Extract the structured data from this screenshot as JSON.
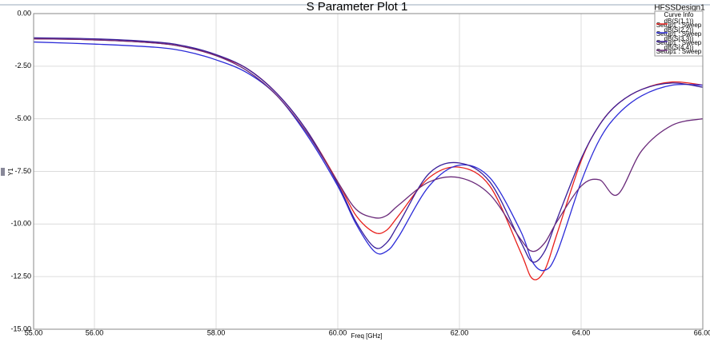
{
  "chart_data": {
    "type": "line",
    "title": "S Parameter Plot 1",
    "design": "HFSSDesign1",
    "legend_title": "Curve Info",
    "xlabel": "Freq [GHz]",
    "ylabel": "Y1",
    "x": [
      55,
      56,
      57,
      57.5,
      58,
      58.5,
      59,
      59.5,
      60,
      60.3,
      60.6,
      60.8,
      61,
      61.5,
      62,
      62.5,
      63,
      63.2,
      63.4,
      63.6,
      64,
      64.3,
      64.6,
      65,
      65.5,
      66
    ],
    "series": [
      {
        "name": "dB(S(1,1))",
        "setup": "Setup1 : Sweep",
        "color": "#e8201c",
        "values": [
          -1.2,
          -1.25,
          -1.4,
          -1.6,
          -2.0,
          -2.6,
          -3.8,
          -5.6,
          -8.0,
          -9.6,
          -10.4,
          -10.3,
          -9.6,
          -7.8,
          -7.3,
          -8.2,
          -11.3,
          -12.6,
          -12.2,
          -10.5,
          -7.0,
          -5.3,
          -4.3,
          -3.6,
          -3.25,
          -3.4
        ]
      },
      {
        "name": "dB(S(2,2))",
        "setup": "Setup1 : Sweep",
        "color": "#2b2bd8",
        "values": [
          -1.35,
          -1.45,
          -1.6,
          -1.8,
          -2.2,
          -2.8,
          -3.9,
          -5.8,
          -8.2,
          -10.0,
          -11.3,
          -11.3,
          -10.6,
          -8.2,
          -7.2,
          -7.8,
          -10.3,
          -11.8,
          -12.2,
          -11.4,
          -8.0,
          -6.0,
          -4.8,
          -3.9,
          -3.4,
          -3.4
        ]
      },
      {
        "name": "dB(S(3,3))",
        "setup": "Setup1 : Sweep",
        "color": "#3a1f9a",
        "values": [
          -1.15,
          -1.2,
          -1.35,
          -1.55,
          -1.95,
          -2.6,
          -3.8,
          -5.6,
          -8.1,
          -9.9,
          -11.1,
          -10.9,
          -10.0,
          -7.6,
          -7.1,
          -8.0,
          -10.8,
          -11.8,
          -11.3,
          -9.8,
          -6.9,
          -5.3,
          -4.3,
          -3.6,
          -3.3,
          -3.5
        ]
      },
      {
        "name": "dB(S(4,4))",
        "setup": "Setup1 : Sweep",
        "color": "#6a2a7a",
        "values": [
          -1.2,
          -1.25,
          -1.4,
          -1.6,
          -2.0,
          -2.7,
          -3.9,
          -5.7,
          -8.0,
          -9.3,
          -9.7,
          -9.6,
          -9.1,
          -8.0,
          -7.8,
          -8.6,
          -10.7,
          -11.3,
          -10.9,
          -9.9,
          -8.2,
          -7.9,
          -8.6,
          -6.5,
          -5.3,
          -5.0
        ]
      }
    ],
    "xlim": [
      55,
      66
    ],
    "xticks": [
      {
        "value": 55,
        "label": "55.00"
      },
      {
        "value": 56,
        "label": "56.00"
      },
      {
        "value": 58,
        "label": "58.00"
      },
      {
        "value": 60,
        "label": "60.00"
      },
      {
        "value": 62,
        "label": "62.00"
      },
      {
        "value": 64,
        "label": "64.00"
      },
      {
        "value": 66,
        "label": "66.00"
      }
    ],
    "ylim": [
      -15,
      0
    ],
    "yticks": [
      {
        "value": 0,
        "label": "0.00"
      },
      {
        "value": -2.5,
        "label": "-2.50"
      },
      {
        "value": -5,
        "label": "-5.00"
      },
      {
        "value": -7.5,
        "label": "-7.50"
      },
      {
        "value": -10,
        "label": "-10.00"
      },
      {
        "value": -12.5,
        "label": "-12.50"
      },
      {
        "value": -15,
        "label": "-15.00"
      }
    ],
    "grid": true
  }
}
